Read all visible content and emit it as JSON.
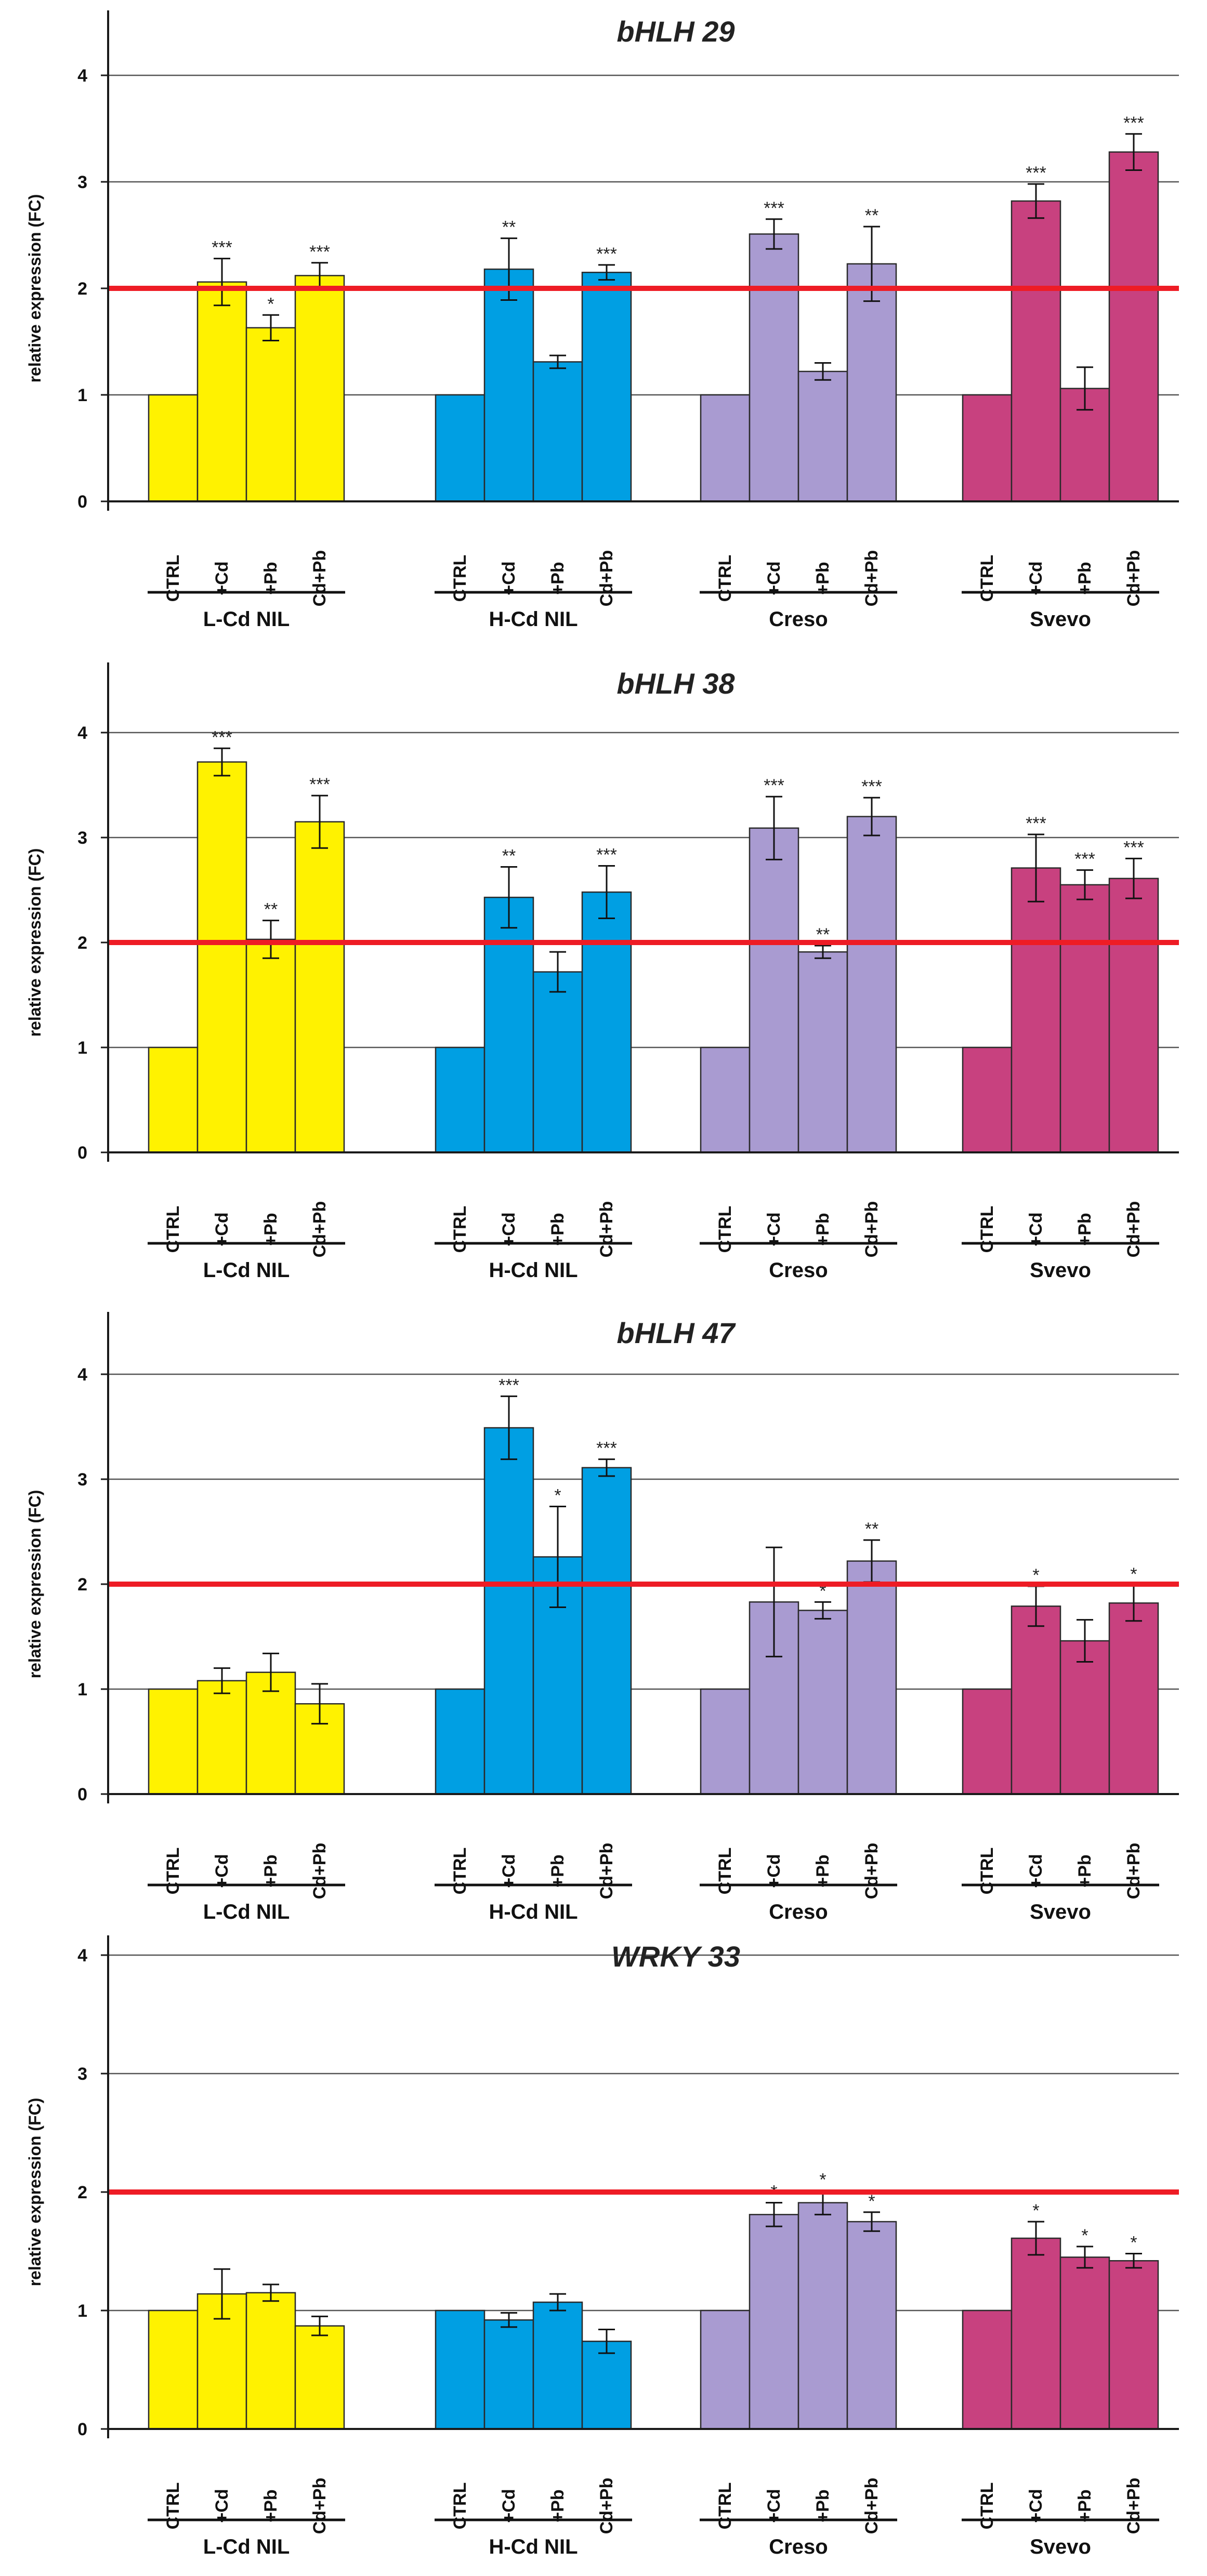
{
  "figure": {
    "groups": [
      "L-Cd NIL",
      "H-Cd NIL",
      "Creso",
      "Svevo"
    ],
    "categories": [
      "CTRL",
      "+Cd",
      "+Pb",
      "Cd+Pb"
    ],
    "colors": {
      "L-Cd NIL": "#fff200",
      "H-Cd NIL": "#009fe3",
      "Creso": "#a99bd1",
      "Svevo": "#c8417f",
      "threshold": "#ee1c25",
      "gridline": "#555555",
      "axis": "#1a1a1a"
    }
  },
  "chart_data": [
    {
      "type": "bar",
      "title": "bHLH 29",
      "ylabel": "relative expression (FC)",
      "xlabel": "",
      "ylim": [
        0,
        4
      ],
      "yticks": [
        "0",
        "1",
        "2",
        "3",
        "4"
      ],
      "threshold": 2,
      "grid": true,
      "categories": [
        "CTRL",
        "+Cd",
        "+Pb",
        "Cd+Pb"
      ],
      "series": [
        {
          "name": "L-Cd NIL",
          "values": [
            1,
            2.06,
            1.63,
            2.12
          ],
          "errors": [
            0,
            0.22,
            0.12,
            0.12
          ],
          "significance": [
            "",
            "***",
            "*",
            "***"
          ]
        },
        {
          "name": "H-Cd NIL",
          "values": [
            1,
            2.18,
            1.31,
            2.15
          ],
          "errors": [
            0,
            0.29,
            0.06,
            0.07
          ],
          "significance": [
            "",
            "**",
            "",
            "***"
          ]
        },
        {
          "name": "Creso",
          "values": [
            1,
            2.51,
            1.22,
            2.23
          ],
          "errors": [
            0,
            0.14,
            0.08,
            0.35
          ],
          "significance": [
            "",
            "***",
            "",
            "**"
          ]
        },
        {
          "name": "Svevo",
          "values": [
            1,
            2.82,
            1.06,
            3.28
          ],
          "errors": [
            0,
            0.16,
            0.2,
            0.17
          ],
          "significance": [
            "",
            "***",
            "",
            "***"
          ]
        }
      ]
    },
    {
      "type": "bar",
      "title": "bHLH 38",
      "ylabel": "relative expression (FC)",
      "xlabel": "",
      "ylim": [
        0,
        4
      ],
      "yticks": [
        "0",
        "1",
        "2",
        "3",
        "4"
      ],
      "threshold": 2,
      "grid": true,
      "categories": [
        "CTRL",
        "+Cd",
        "+Pb",
        "Cd+Pb"
      ],
      "series": [
        {
          "name": "L-Cd NIL",
          "values": [
            1,
            3.72,
            2.03,
            3.15
          ],
          "errors": [
            0,
            0.13,
            0.18,
            0.25
          ],
          "significance": [
            "",
            "***",
            "**",
            "***"
          ]
        },
        {
          "name": "H-Cd NIL",
          "values": [
            1,
            2.43,
            1.72,
            2.48
          ],
          "errors": [
            0,
            0.29,
            0.19,
            0.25
          ],
          "significance": [
            "",
            "**",
            "",
            "***"
          ]
        },
        {
          "name": "Creso",
          "values": [
            1,
            3.09,
            1.91,
            3.2
          ],
          "errors": [
            0,
            0.3,
            0.06,
            0.18
          ],
          "significance": [
            "",
            "***",
            "**",
            "***"
          ]
        },
        {
          "name": "Svevo",
          "values": [
            1,
            2.71,
            2.55,
            2.61
          ],
          "errors": [
            0,
            0.32,
            0.14,
            0.19
          ],
          "significance": [
            "",
            "***",
            "***",
            "***"
          ]
        }
      ]
    },
    {
      "type": "bar",
      "title": "bHLH 47",
      "ylabel": "relative expression (FC)",
      "xlabel": "",
      "ylim": [
        0,
        4
      ],
      "yticks": [
        "0",
        "1",
        "2",
        "3",
        "4"
      ],
      "threshold": 2,
      "grid": true,
      "categories": [
        "CTRL",
        "+Cd",
        "+Pb",
        "Cd+Pb"
      ],
      "series": [
        {
          "name": "L-Cd NIL",
          "values": [
            1,
            1.08,
            1.16,
            0.86
          ],
          "errors": [
            0,
            0.12,
            0.18,
            0.19
          ],
          "significance": [
            "",
            "",
            "",
            ""
          ]
        },
        {
          "name": "H-Cd NIL",
          "values": [
            1,
            3.49,
            2.26,
            3.11
          ],
          "errors": [
            0,
            0.3,
            0.48,
            0.08
          ],
          "significance": [
            "",
            "***",
            "*",
            "***"
          ]
        },
        {
          "name": "Creso",
          "values": [
            1,
            1.83,
            1.75,
            2.22
          ],
          "errors": [
            0,
            0.52,
            0.08,
            0.2
          ],
          "significance": [
            "",
            "",
            "*",
            "**"
          ]
        },
        {
          "name": "Svevo",
          "values": [
            1,
            1.79,
            1.46,
            1.82
          ],
          "errors": [
            0,
            0.19,
            0.2,
            0.17
          ],
          "significance": [
            "",
            "*",
            "",
            "*"
          ]
        }
      ]
    },
    {
      "type": "bar",
      "title": "WRKY 33",
      "ylabel": "relative expression (FC)",
      "xlabel": "",
      "ylim": [
        0,
        4
      ],
      "yticks": [
        "0",
        "1",
        "2",
        "3",
        "4"
      ],
      "threshold": 2,
      "grid": true,
      "categories": [
        "CTRL",
        "+Cd",
        "+Pb",
        "Cd+Pb"
      ],
      "series": [
        {
          "name": "L-Cd NIL",
          "values": [
            1,
            1.14,
            1.15,
            0.87
          ],
          "errors": [
            0,
            0.21,
            0.07,
            0.08
          ],
          "significance": [
            "",
            "",
            "",
            ""
          ]
        },
        {
          "name": "H-Cd NIL",
          "values": [
            1,
            0.92,
            1.07,
            0.74
          ],
          "errors": [
            0,
            0.06,
            0.07,
            0.1
          ],
          "significance": [
            "",
            "",
            "",
            ""
          ]
        },
        {
          "name": "Creso",
          "values": [
            1,
            1.81,
            1.91,
            1.75
          ],
          "errors": [
            0,
            0.1,
            0.1,
            0.08
          ],
          "significance": [
            "",
            "*",
            "*",
            "*"
          ]
        },
        {
          "name": "Svevo",
          "values": [
            1,
            1.61,
            1.45,
            1.42
          ],
          "errors": [
            0,
            0.14,
            0.09,
            0.06
          ],
          "significance": [
            "",
            "*",
            "*",
            "*"
          ]
        }
      ]
    }
  ]
}
